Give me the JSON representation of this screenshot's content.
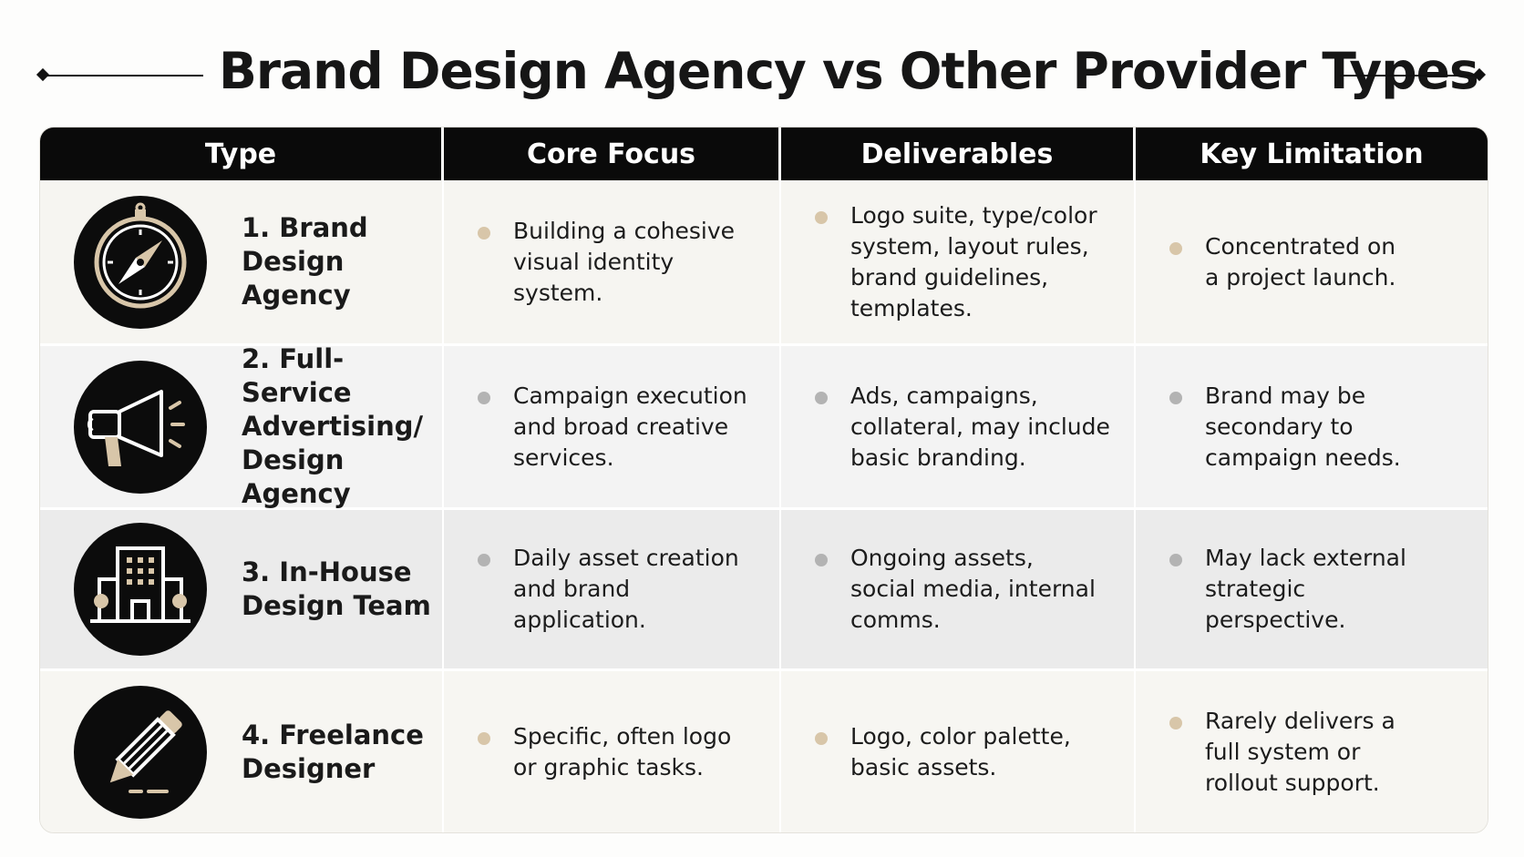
{
  "title": "Brand Design Agency vs Other Provider Types",
  "columns": [
    "Type",
    "Core Focus",
    "Deliverables",
    "Key Limitation"
  ],
  "rows": [
    {
      "icon": "compass-icon",
      "type": "1. Brand\nDesign\nAgency",
      "core_focus": "Building a cohesive\nvisual identity system.",
      "deliverables": "Logo suite, type/color\nsystem, layout rules,\nbrand guidelines,\ntemplates.",
      "limitation": "Concentrated on\na project launch."
    },
    {
      "icon": "megaphone-icon",
      "type": "2. Full-Service\nAdvertising/\nDesign Agency",
      "core_focus": "Campaign execution\nand broad creative\nservices.",
      "deliverables": "Ads, campaigns,\ncollateral, may include\nbasic branding.",
      "limitation": "Brand may be\nsecondary to\ncampaign needs."
    },
    {
      "icon": "building-icon",
      "type": "3. In-House\nDesign Team",
      "core_focus": "Daily asset creation\nand brand\napplication.",
      "deliverables": "Ongoing assets,\nsocial media, internal\ncomms.",
      "limitation": "May lack external\nstrategic\nperspective."
    },
    {
      "icon": "pencil-icon",
      "type": "4. Freelance\nDesigner",
      "core_focus": "Specific, often logo\nor graphic tasks.",
      "deliverables": "Logo, color palette,\nbasic assets.",
      "limitation": "Rarely delivers a\nfull system or\nrollout support."
    }
  ],
  "colors": {
    "header_bg": "#0a0a0a",
    "accent_tan": "#d8c6a9",
    "bullet_grey": "#b3b3b3"
  }
}
